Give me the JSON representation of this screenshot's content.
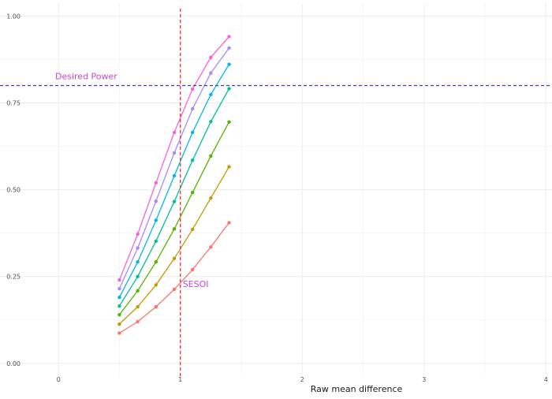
{
  "chart_data": {
    "type": "line",
    "title": "",
    "xlabel": "Raw mean difference",
    "ylabel": "",
    "xlim": [
      -0.48,
      4.05
    ],
    "ylim": [
      -0.03,
      1.035
    ],
    "x_ticks": [
      0,
      1,
      2,
      3,
      4
    ],
    "x_tick_labels": [
      "0",
      "1",
      "2",
      "3",
      "4"
    ],
    "y_ticks": [
      0,
      0.25,
      0.5,
      0.75,
      1
    ],
    "y_tick_labels": [
      "0.00",
      "0.25",
      "0.50",
      "0.75",
      "1.00"
    ],
    "grid": true,
    "legend": "none",
    "x": [
      0.5,
      0.65,
      0.8,
      0.95,
      1.1,
      1.25,
      1.4
    ],
    "series": [
      {
        "color": "#F8766D",
        "values": [
          0.087,
          0.12,
          0.163,
          0.213,
          0.27,
          0.335,
          0.405
        ]
      },
      {
        "color": "#C49A00",
        "values": [
          0.113,
          0.163,
          0.226,
          0.302,
          0.386,
          0.476,
          0.566
        ]
      },
      {
        "color": "#53B400",
        "values": [
          0.14,
          0.209,
          0.292,
          0.387,
          0.492,
          0.597,
          0.695
        ]
      },
      {
        "color": "#00C094",
        "values": [
          0.165,
          0.25,
          0.352,
          0.466,
          0.585,
          0.696,
          0.791
        ]
      },
      {
        "color": "#00B6EB",
        "values": [
          0.19,
          0.292,
          0.412,
          0.54,
          0.665,
          0.774,
          0.861
        ]
      },
      {
        "color": "#A58AFF",
        "values": [
          0.215,
          0.332,
          0.467,
          0.606,
          0.733,
          0.836,
          0.908
        ]
      },
      {
        "color": "#FB61D7",
        "values": [
          0.24,
          0.372,
          0.52,
          0.665,
          0.79,
          0.881,
          0.941
        ]
      }
    ],
    "reference_lines": [
      {
        "orientation": "horizontal",
        "value": 0.8,
        "color": "#3a3ac4",
        "style": "dashed",
        "label": "Desired Power",
        "label_color": "#cc44cc"
      },
      {
        "orientation": "vertical",
        "value": 1,
        "color": "#ee3333",
        "style": "dashed",
        "label": "SESOI",
        "label_color": "#cc44cc"
      }
    ]
  }
}
